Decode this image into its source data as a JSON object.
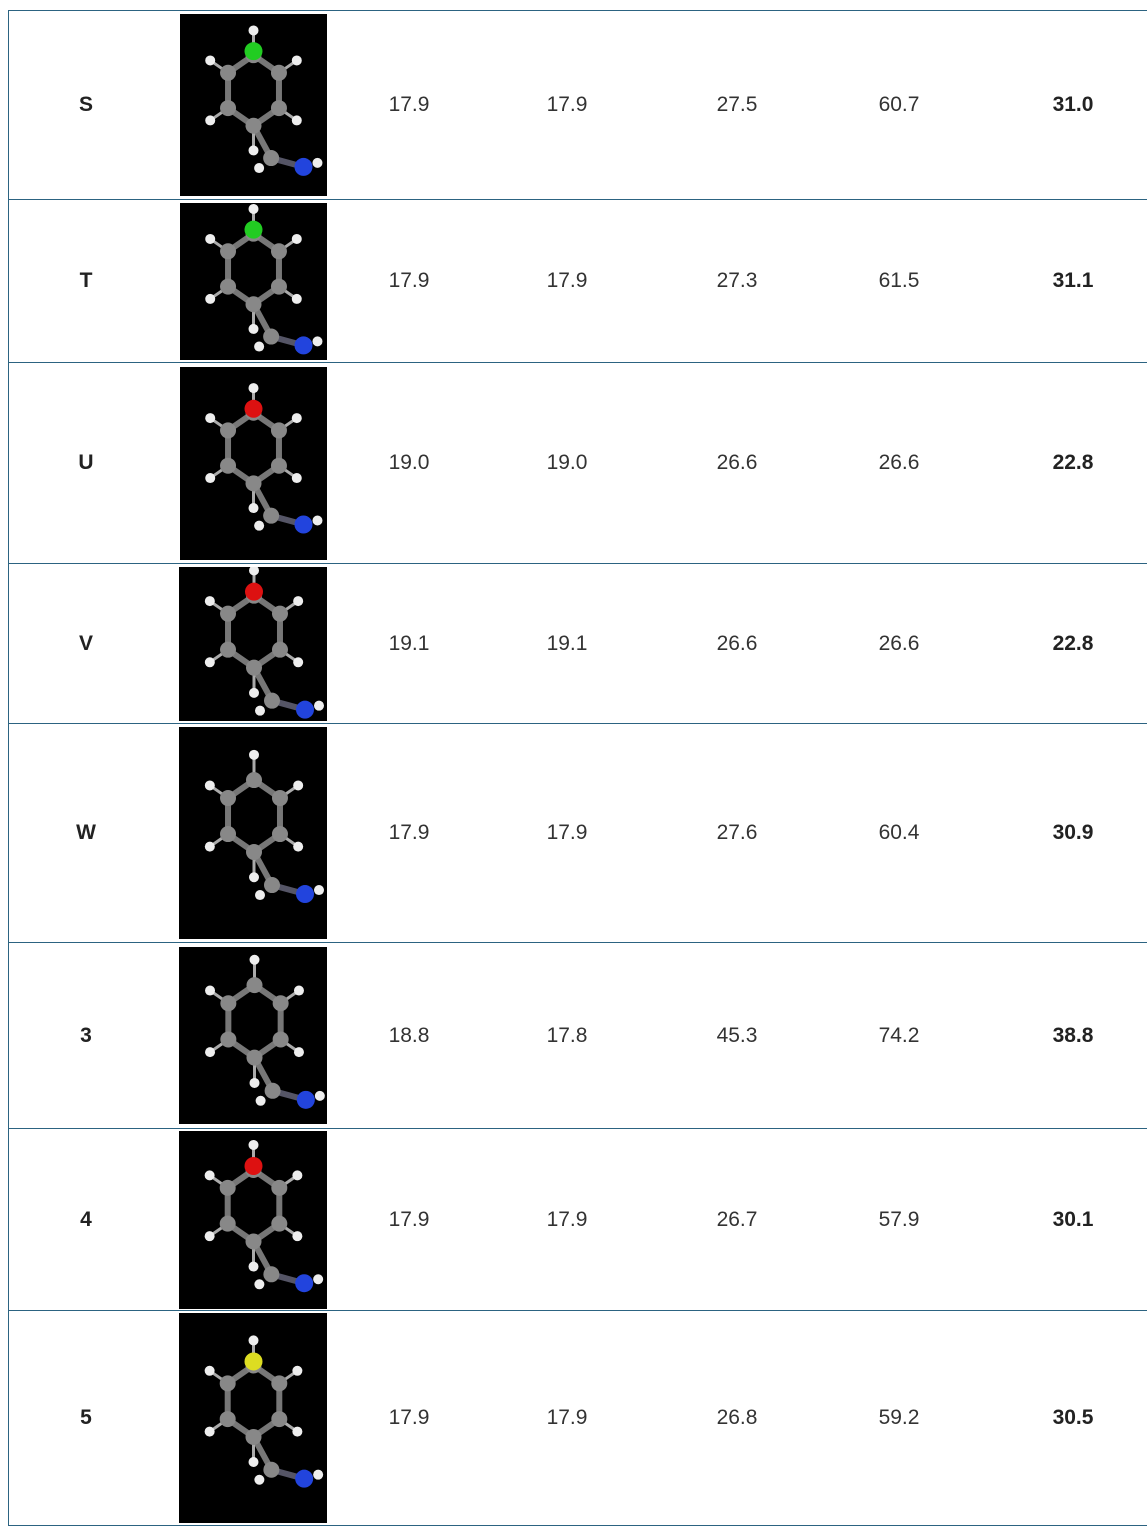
{
  "table": {
    "rows": [
      [
        "S",
        "17.9",
        "17.9",
        "27.5",
        "60.7",
        "31.0"
      ],
      [
        "T",
        "17.9",
        "17.9",
        "27.3",
        "61.5",
        "31.1"
      ],
      [
        "U",
        "19.0",
        "19.0",
        "26.6",
        "26.6",
        "22.8"
      ],
      [
        "V",
        "19.1",
        "19.1",
        "26.6",
        "26.6",
        "22.8"
      ],
      [
        "W",
        "17.9",
        "17.9",
        "27.6",
        "60.4",
        "30.9"
      ],
      [
        "3",
        "18.8",
        "17.8",
        "45.3",
        "74.2",
        "38.8"
      ],
      [
        "4",
        "17.9",
        "17.9",
        "26.7",
        "57.9",
        "30.1"
      ],
      [
        "5",
        "17.9",
        "17.9",
        "26.8",
        "59.2",
        "30.5"
      ]
    ]
  }
}
